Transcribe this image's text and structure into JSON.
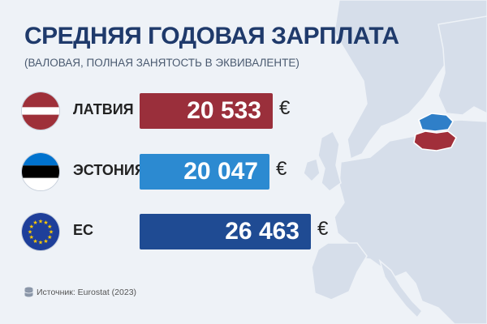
{
  "header": {
    "title": "СРЕДНЯЯ ГОДОВАЯ ЗАРПЛАТА",
    "subtitle": "(ВАЛОВАЯ, ПОЛНАЯ ЗАНЯТОСТЬ В ЭКВИВАЛЕНТЕ)"
  },
  "footer": {
    "source": "Источник: Eurostat (2023)",
    "source_icon": "database-icon"
  },
  "colors": {
    "latvia_bar": "#9a2f3b",
    "estonia_bar": "#2c8ad1",
    "eu_bar": "#1f4b93",
    "title": "#1f3a6b",
    "map_land": "#d6deea",
    "map_latvia": "#a12f3a",
    "map_estonia": "#2f7fc8"
  },
  "chart_data": {
    "type": "bar",
    "orientation": "horizontal",
    "title": "СРЕДНЯЯ ГОДОВАЯ ЗАРПЛАТА",
    "subtitle": "(ВАЛОВАЯ, ПОЛНАЯ ЗАНЯТОСТЬ В ЭКВИВАЛЕНТЕ)",
    "categories": [
      "ЛАТВИЯ",
      "ЭСТОНИЯ",
      "ЕС"
    ],
    "values": [
      20533,
      20047,
      26463
    ],
    "value_labels": [
      "20 533",
      "20 047",
      "26 463"
    ],
    "unit": "€",
    "flags": [
      "latvia-flag-icon",
      "estonia-flag-icon",
      "eu-flag-icon"
    ],
    "grid": false,
    "legend": "none"
  }
}
